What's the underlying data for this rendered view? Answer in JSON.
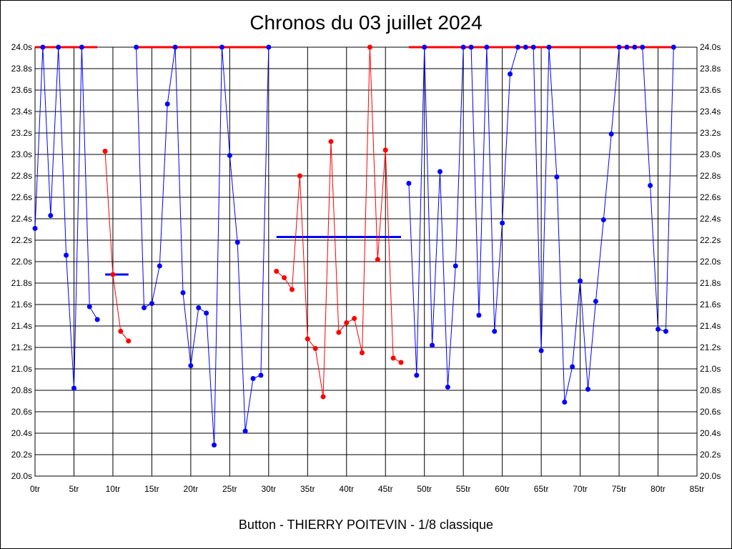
{
  "chart_data": {
    "type": "line",
    "title": "Chronos du 03 juillet 2024",
    "footer": "Button - THIERRY POITEVIN - 1/8 classique",
    "xlim": [
      0,
      85
    ],
    "ylim": [
      20.0,
      24.0
    ],
    "x_ticks": [
      0,
      5,
      10,
      15,
      20,
      25,
      30,
      35,
      40,
      45,
      50,
      55,
      60,
      65,
      70,
      75,
      80,
      85
    ],
    "x_tick_labels": [
      "0tr",
      "5tr",
      "10tr",
      "15tr",
      "20tr",
      "25tr",
      "30tr",
      "35tr",
      "40tr",
      "45tr",
      "50tr",
      "55tr",
      "60tr",
      "65tr",
      "70tr",
      "75tr",
      "80tr",
      "85tr"
    ],
    "y_ticks": [
      20.0,
      20.2,
      20.4,
      20.6,
      20.8,
      21.0,
      21.2,
      21.4,
      21.6,
      21.8,
      22.0,
      22.2,
      22.4,
      22.6,
      22.8,
      23.0,
      23.2,
      23.4,
      23.6,
      23.8,
      24.0
    ],
    "y_tick_labels": [
      "20.0s",
      "20.2s",
      "20.4s",
      "20.6s",
      "20.8s",
      "21.0s",
      "21.2s",
      "21.4s",
      "21.6s",
      "21.8s",
      "22.0s",
      "22.2s",
      "22.4s",
      "22.6s",
      "22.8s",
      "23.0s",
      "23.2s",
      "23.4s",
      "23.6s",
      "23.8s",
      "24.0s"
    ],
    "grid": true,
    "colors": {
      "blue": "#0000ff",
      "red": "#ff0000",
      "grid": "#000000"
    },
    "series": [
      {
        "color": "blue",
        "points": [
          [
            0,
            22.31
          ],
          [
            1,
            24.0
          ],
          [
            2,
            22.43
          ],
          [
            3,
            24.0
          ],
          [
            4,
            22.06
          ],
          [
            5,
            20.82
          ],
          [
            6,
            24.0
          ],
          [
            7,
            21.58
          ],
          [
            8,
            21.46
          ]
        ]
      },
      {
        "color": "red",
        "points": [
          [
            9,
            23.03
          ],
          [
            10,
            21.88
          ],
          [
            11,
            21.35
          ],
          [
            12,
            21.26
          ]
        ]
      },
      {
        "color": "blue",
        "points": [
          [
            13,
            24.0
          ],
          [
            14,
            21.57
          ],
          [
            15,
            21.61
          ],
          [
            16,
            21.96
          ],
          [
            17,
            23.47
          ],
          [
            18,
            24.0
          ],
          [
            19,
            21.71
          ],
          [
            20,
            21.03
          ],
          [
            21,
            21.57
          ],
          [
            22,
            21.52
          ],
          [
            23,
            20.29
          ],
          [
            24,
            24.0
          ],
          [
            25,
            22.99
          ],
          [
            26,
            22.18
          ],
          [
            27,
            20.42
          ],
          [
            28,
            20.91
          ],
          [
            29,
            20.94
          ],
          [
            30,
            24.0
          ]
        ]
      },
      {
        "color": "red",
        "points": [
          [
            31,
            21.91
          ],
          [
            32,
            21.85
          ],
          [
            33,
            21.74
          ],
          [
            34,
            22.8
          ],
          [
            35,
            21.28
          ],
          [
            36,
            21.19
          ],
          [
            37,
            20.74
          ],
          [
            38,
            23.12
          ],
          [
            39,
            21.34
          ],
          [
            40,
            21.43
          ],
          [
            41,
            21.47
          ],
          [
            42,
            21.15
          ],
          [
            43,
            24.0
          ],
          [
            44,
            22.02
          ],
          [
            45,
            23.04
          ],
          [
            46,
            21.1
          ],
          [
            47,
            21.06
          ]
        ]
      },
      {
        "color": "blue",
        "points": [
          [
            48,
            22.73
          ],
          [
            49,
            20.94
          ],
          [
            50,
            24.0
          ],
          [
            51,
            21.22
          ],
          [
            52,
            22.84
          ],
          [
            53,
            20.83
          ],
          [
            54,
            21.96
          ],
          [
            55,
            24.0
          ],
          [
            56,
            24.0
          ],
          [
            57,
            21.5
          ],
          [
            58,
            24.0
          ],
          [
            59,
            21.35
          ],
          [
            60,
            22.36
          ],
          [
            61,
            23.75
          ],
          [
            62,
            24.0
          ],
          [
            63,
            24.0
          ],
          [
            64,
            24.0
          ],
          [
            65,
            21.17
          ],
          [
            66,
            24.0
          ],
          [
            67,
            22.79
          ],
          [
            68,
            20.69
          ],
          [
            69,
            21.02
          ],
          [
            70,
            21.82
          ],
          [
            71,
            20.81
          ],
          [
            72,
            21.63
          ],
          [
            73,
            22.39
          ],
          [
            74,
            23.19
          ],
          [
            75,
            24.0
          ],
          [
            76,
            24.0
          ],
          [
            77,
            24.0
          ],
          [
            78,
            24.0
          ],
          [
            79,
            22.71
          ],
          [
            80,
            21.37
          ],
          [
            81,
            21.35
          ],
          [
            82,
            24.0
          ]
        ]
      }
    ],
    "limit_segments": [
      {
        "color": "red",
        "x1": 0,
        "x2": 8,
        "y": 24.0
      },
      {
        "color": "red",
        "x1": 13,
        "x2": 30,
        "y": 24.0
      },
      {
        "color": "red",
        "x1": 48,
        "x2": 82,
        "y": 24.0
      }
    ],
    "average_segments": [
      {
        "color": "blue",
        "x1": 9,
        "x2": 12,
        "y": 21.88
      },
      {
        "color": "blue",
        "x1": 31,
        "x2": 47,
        "y": 22.23
      }
    ]
  }
}
